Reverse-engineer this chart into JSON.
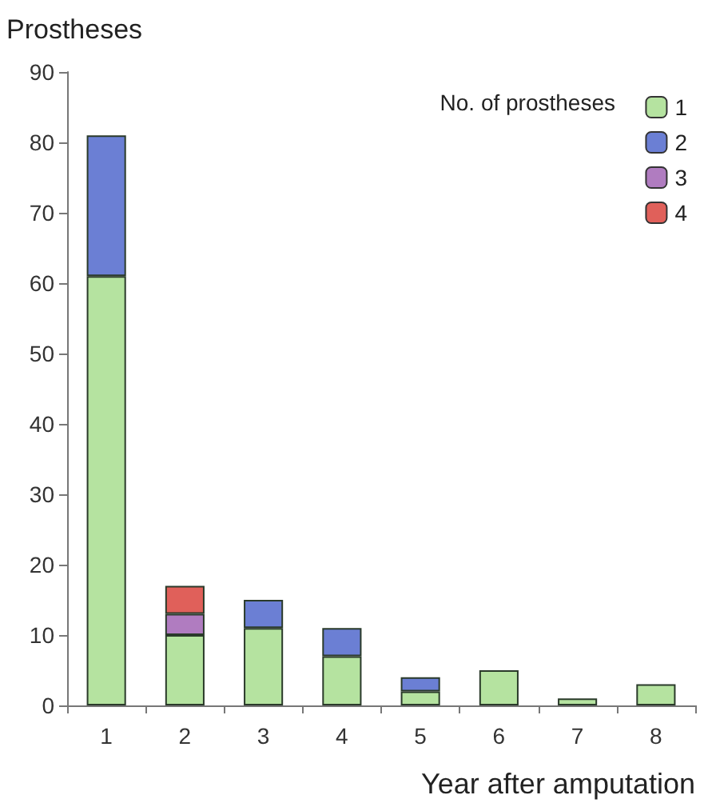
{
  "chart_data": {
    "type": "bar",
    "ylabel": "Prostheses",
    "xlabel": "Year after amputation",
    "legend_title": "No. of prostheses",
    "categories": [
      "1",
      "2",
      "3",
      "4",
      "5",
      "6",
      "7",
      "8"
    ],
    "stacked": true,
    "series": [
      {
        "name": "1",
        "color": "#b5e3a0",
        "values": [
          61,
          10,
          11,
          7,
          2,
          5,
          1,
          3
        ]
      },
      {
        "name": "2",
        "color": "#6b7fd4",
        "values": [
          20,
          0,
          4,
          4,
          2,
          0,
          0,
          0
        ]
      },
      {
        "name": "3",
        "color": "#b07cc0",
        "values": [
          0,
          3,
          0,
          0,
          0,
          0,
          0,
          0
        ]
      },
      {
        "name": "4",
        "color": "#e0605a",
        "values": [
          0,
          4,
          0,
          0,
          0,
          0,
          0,
          0
        ]
      }
    ],
    "ylim": [
      0,
      90
    ],
    "yticks": [
      0,
      10,
      20,
      30,
      40,
      50,
      60,
      70,
      80,
      90
    ],
    "grid": false,
    "legend": "top right"
  }
}
